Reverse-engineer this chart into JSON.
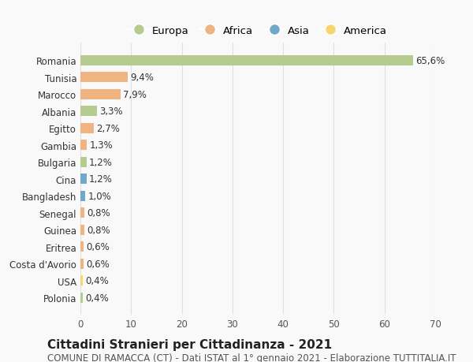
{
  "countries": [
    "Romania",
    "Tunisia",
    "Marocco",
    "Albania",
    "Egitto",
    "Gambia",
    "Bulgaria",
    "Cina",
    "Bangladesh",
    "Senegal",
    "Guinea",
    "Eritrea",
    "Costa d'Avorio",
    "USA",
    "Polonia"
  ],
  "values": [
    65.6,
    9.4,
    7.9,
    3.3,
    2.7,
    1.3,
    1.2,
    1.2,
    1.0,
    0.8,
    0.8,
    0.6,
    0.6,
    0.4,
    0.4
  ],
  "labels": [
    "65,6%",
    "9,4%",
    "7,9%",
    "3,3%",
    "2,7%",
    "1,3%",
    "1,2%",
    "1,2%",
    "1,0%",
    "0,8%",
    "0,8%",
    "0,6%",
    "0,6%",
    "0,4%",
    "0,4%"
  ],
  "colors": [
    "#b5cc8e",
    "#f0b482",
    "#f0b482",
    "#b5cc8e",
    "#f0b482",
    "#f0b482",
    "#b5cc8e",
    "#6fa8c8",
    "#6fa8c8",
    "#f0b482",
    "#f0b482",
    "#f0b482",
    "#f0b482",
    "#f5d76e",
    "#b5cc8e"
  ],
  "legend_labels": [
    "Europa",
    "Africa",
    "Asia",
    "America"
  ],
  "legend_colors": [
    "#b5cc8e",
    "#f0b482",
    "#6fa8c8",
    "#f5d76e"
  ],
  "title": "Cittadini Stranieri per Cittadinanza - 2021",
  "subtitle": "COMUNE DI RAMACCA (CT) - Dati ISTAT al 1° gennaio 2021 - Elaborazione TUTTITALIA.IT",
  "xlim": [
    0,
    70
  ],
  "xticks": [
    0,
    10,
    20,
    30,
    40,
    50,
    60,
    70
  ],
  "background_color": "#f9f9f9",
  "grid_color": "#e0e0e0",
  "title_fontsize": 11,
  "subtitle_fontsize": 8.5,
  "label_fontsize": 8.5,
  "tick_fontsize": 8.5
}
